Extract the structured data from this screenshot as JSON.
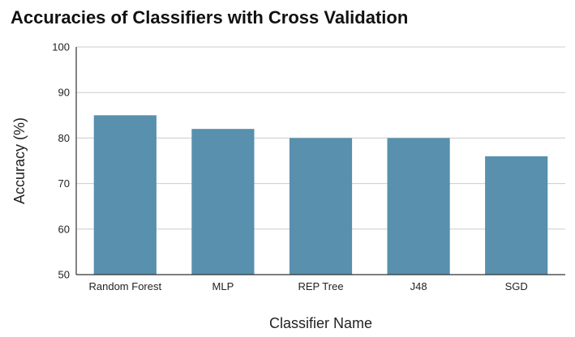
{
  "chart_data": {
    "type": "bar",
    "title": "Accuracies of Classifiers with Cross Validation",
    "xlabel": "Classifier Name",
    "ylabel": "Accuracy (%)",
    "categories": [
      "Random Forest",
      "MLP",
      "REP Tree",
      "J48",
      "SGD"
    ],
    "values": [
      85,
      82,
      80,
      80,
      76
    ],
    "ylim": [
      50,
      100
    ],
    "yticks": [
      50,
      60,
      70,
      80,
      90,
      100
    ],
    "grid": true,
    "legend": "none",
    "bar_color": "#5890ae",
    "grid_color": "#cccccc",
    "axis_color": "#333333"
  }
}
